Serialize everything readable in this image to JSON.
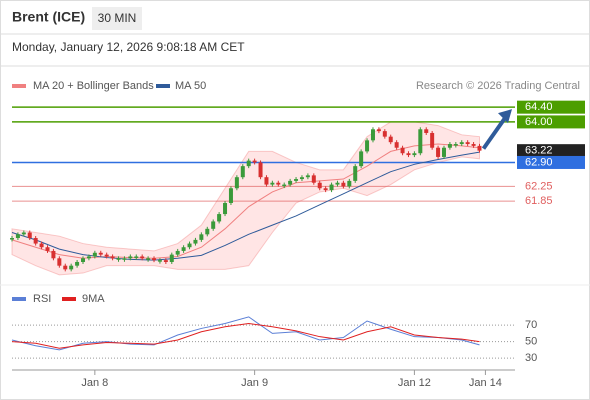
{
  "chart_data": {
    "type": "candlestick",
    "title": "Brent (ICE)",
    "timeframe": "30 MIN",
    "subtitle": "Monday, January 12, 2026 9:08:18 AM CET",
    "credit": "Research © 2026 Trading Central",
    "up_color": "#3a9a3a",
    "down_color": "#d83030",
    "xlim": [
      0,
      85
    ],
    "xticks": [
      {
        "value": 14,
        "label": "Jan 8"
      },
      {
        "value": 41,
        "label": "Jan 9"
      },
      {
        "value": 68,
        "label": "Jan 12"
      },
      {
        "value": 80,
        "label": "Jan 14"
      }
    ],
    "ylim": [
      59.63,
      64.73
    ],
    "close": [
      60.85,
      60.95,
      61.0,
      60.85,
      60.7,
      60.6,
      60.5,
      60.3,
      60.1,
      60.0,
      60.1,
      60.2,
      60.3,
      60.35,
      60.45,
      60.4,
      60.35,
      60.3,
      60.3,
      60.3,
      60.35,
      60.35,
      60.3,
      60.3,
      60.25,
      60.25,
      60.2,
      60.4,
      60.5,
      60.6,
      60.7,
      60.8,
      60.95,
      61.1,
      61.3,
      61.5,
      61.8,
      62.2,
      62.5,
      62.8,
      62.95,
      62.9,
      62.5,
      62.3,
      62.35,
      62.3,
      62.3,
      62.4,
      62.45,
      62.5,
      62.55,
      62.35,
      62.2,
      62.15,
      62.3,
      62.35,
      62.25,
      62.4,
      62.8,
      63.2,
      63.5,
      63.8,
      63.75,
      63.6,
      63.45,
      63.3,
      63.15,
      63.1,
      63.15,
      63.8,
      63.7,
      63.3,
      63.05,
      63.3,
      63.4,
      63.4,
      63.45,
      63.4,
      63.35,
      63.22
    ],
    "ma_x": [
      0,
      4,
      8,
      12,
      16,
      20,
      24,
      28,
      32,
      36,
      40,
      44,
      48,
      52,
      56,
      60,
      64,
      68,
      72,
      76,
      79
    ],
    "bands": {
      "name": "MA 20 + Bollinger Bands",
      "color": "#f08080",
      "upper": [
        61.1,
        61.0,
        60.9,
        60.7,
        60.6,
        60.55,
        60.5,
        60.7,
        61.2,
        62.2,
        63.2,
        63.2,
        62.9,
        62.7,
        62.7,
        63.6,
        64.0,
        64.0,
        63.9,
        63.65,
        63.6
      ],
      "lower": [
        60.4,
        60.1,
        59.85,
        59.9,
        60.1,
        60.1,
        60.1,
        60.0,
        60.0,
        60.0,
        60.1,
        61.0,
        61.8,
        62.1,
        62.2,
        62.0,
        62.3,
        62.7,
        62.9,
        63.05,
        63.0
      ],
      "values": [
        60.8,
        60.6,
        60.4,
        60.3,
        60.35,
        60.32,
        60.3,
        60.35,
        60.6,
        61.1,
        61.7,
        62.1,
        62.35,
        62.4,
        62.45,
        62.8,
        63.2,
        63.35,
        63.4,
        63.35,
        63.3
      ]
    },
    "ma50": {
      "name": "MA 50",
      "color": "#2f5b9a",
      "values": [
        61.0,
        60.8,
        60.55,
        60.4,
        60.32,
        60.27,
        60.25,
        60.3,
        60.38,
        60.65,
        60.95,
        61.2,
        61.45,
        61.75,
        62.05,
        62.35,
        62.65,
        62.85,
        62.98,
        63.1,
        63.18
      ]
    },
    "levels": [
      {
        "value": 64.4,
        "label": "64.40",
        "color": "#4c9e00",
        "tag": true
      },
      {
        "value": 64.0,
        "label": "64.00",
        "color": "#4c9e00",
        "tag": true
      },
      {
        "value": 63.22,
        "label": "63.22",
        "color": "#222222",
        "tag": true,
        "line": false
      },
      {
        "value": 62.9,
        "label": "62.90",
        "color": "#2f6fe0",
        "tag": true
      },
      {
        "value": 62.25,
        "label": "62.25",
        "color": "#e06060",
        "tag": false
      },
      {
        "value": 61.85,
        "label": "61.85",
        "color": "#e06060",
        "tag": false
      }
    ],
    "rsi": {
      "ylim": [
        18,
        92
      ],
      "yticks": [
        70,
        50,
        30
      ],
      "series": [
        {
          "name": "RSI",
          "color": "#5b7fd6",
          "values": [
            52,
            45,
            40,
            48,
            50,
            47,
            46,
            58,
            66,
            72,
            80,
            60,
            62,
            52,
            55,
            75,
            65,
            56,
            55,
            52,
            46
          ]
        },
        {
          "name": "9MA",
          "color": "#e02020",
          "values": [
            50,
            48,
            42,
            46,
            49,
            48,
            47,
            52,
            62,
            68,
            72,
            68,
            63,
            56,
            52,
            62,
            68,
            58,
            55,
            53,
            50
          ]
        }
      ]
    }
  }
}
